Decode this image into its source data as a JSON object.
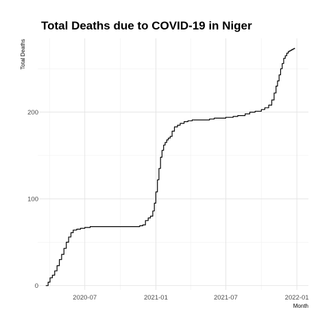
{
  "chart_data": {
    "type": "line",
    "title": "Total Deaths due to COVID-19 in Niger",
    "xlabel": "Month",
    "ylabel": "Total Deaths",
    "x_ticks": [
      "2020-07",
      "2021-01",
      "2021-07",
      "2022-01"
    ],
    "y_ticks": [
      0,
      100,
      200
    ],
    "xlim": [
      "2020-03-01",
      "2022-01-31"
    ],
    "ylim": [
      -5,
      285
    ],
    "grid": true,
    "series": [
      {
        "x": [
          "2020-03-22",
          "2020-03-28",
          "2020-04-02",
          "2020-04-08",
          "2020-04-14",
          "2020-04-20",
          "2020-04-26",
          "2020-05-02",
          "2020-05-08",
          "2020-05-14",
          "2020-05-20",
          "2020-05-26",
          "2020-06-01",
          "2020-06-10",
          "2020-06-20",
          "2020-07-01",
          "2020-07-15",
          "2020-08-01",
          "2020-09-01",
          "2020-10-01",
          "2020-11-01",
          "2020-11-20",
          "2020-11-28",
          "2020-12-05",
          "2020-12-12",
          "2020-12-18",
          "2020-12-24",
          "2020-12-28",
          "2021-01-01",
          "2021-01-05",
          "2021-01-09",
          "2021-01-13",
          "2021-01-17",
          "2021-01-21",
          "2021-01-25",
          "2021-01-29",
          "2021-02-02",
          "2021-02-07",
          "2021-02-12",
          "2021-02-18",
          "2021-02-26",
          "2021-03-05",
          "2021-03-15",
          "2021-03-25",
          "2021-04-05",
          "2021-04-20",
          "2021-05-01",
          "2021-05-20",
          "2021-06-01",
          "2021-06-15",
          "2021-07-01",
          "2021-07-20",
          "2021-08-01",
          "2021-08-20",
          "2021-09-01",
          "2021-09-15",
          "2021-10-01",
          "2021-10-10",
          "2021-10-20",
          "2021-10-28",
          "2021-11-03",
          "2021-11-08",
          "2021-11-12",
          "2021-11-16",
          "2021-11-20",
          "2021-11-24",
          "2021-11-28",
          "2021-12-02",
          "2021-12-06",
          "2021-12-10",
          "2021-12-14",
          "2021-12-18",
          "2021-12-22",
          "2021-12-26"
        ],
        "values": [
          0,
          4,
          9,
          12,
          17,
          23,
          30,
          36,
          43,
          50,
          56,
          61,
          64,
          65,
          66,
          67,
          68,
          68,
          68,
          68,
          68,
          69,
          70,
          75,
          78,
          80,
          86,
          95,
          108,
          122,
          135,
          148,
          156,
          162,
          165,
          168,
          170,
          172,
          178,
          183,
          185,
          187,
          189,
          190,
          191,
          191,
          191,
          192,
          193,
          193,
          194,
          195,
          196,
          198,
          200,
          201,
          203,
          205,
          208,
          214,
          222,
          230,
          236,
          243,
          250,
          256,
          262,
          265,
          268,
          270,
          271,
          272,
          273,
          274
        ]
      }
    ]
  }
}
